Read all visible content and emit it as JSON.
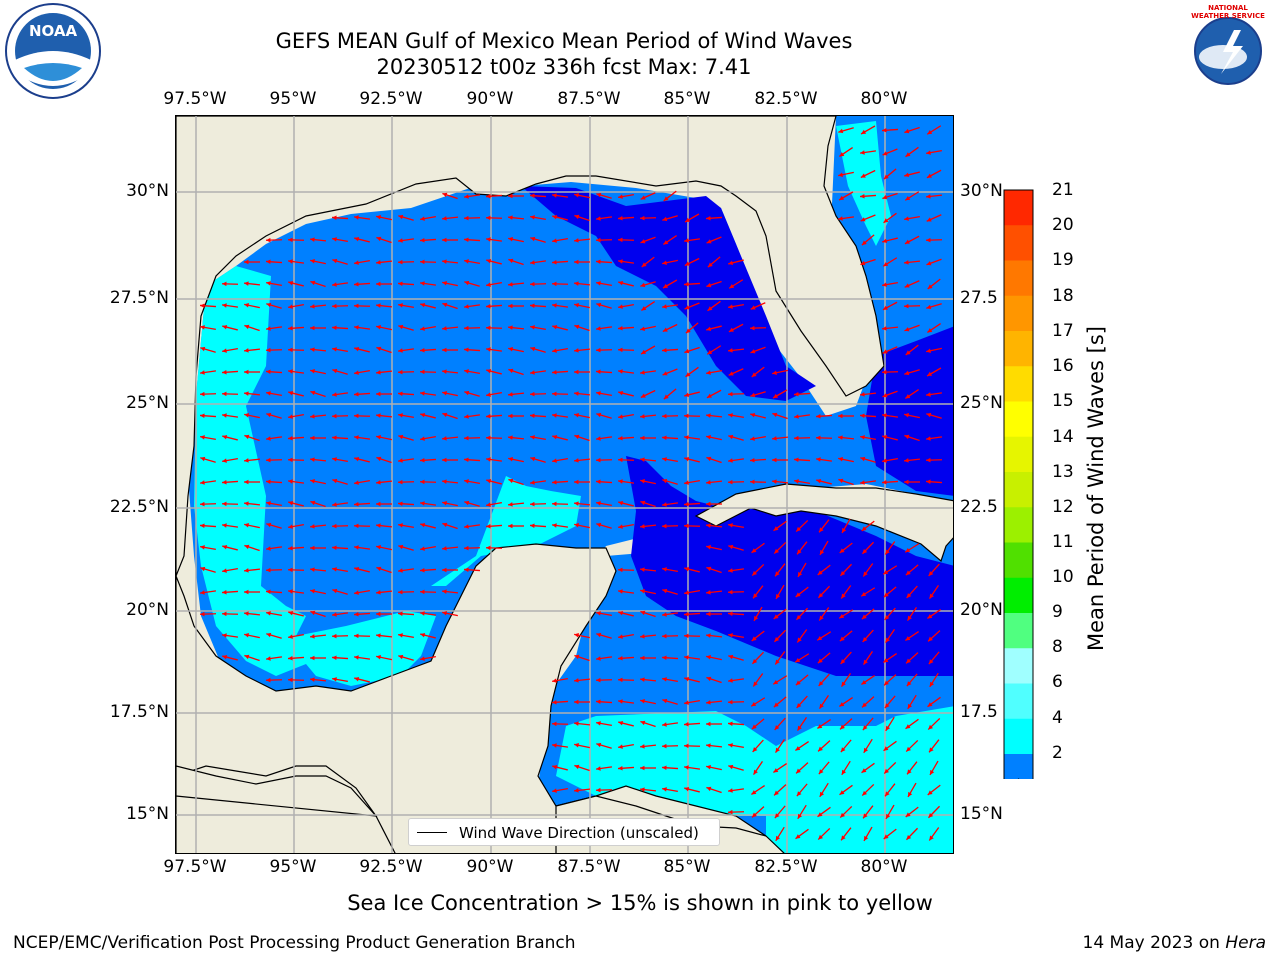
{
  "title": {
    "line1": "GEFS MEAN Gulf of Mexico Mean Period of Wind Waves",
    "line2": "20230512 t00z 336h fcst   Max: 7.41"
  },
  "logos": {
    "noaa_text": "NOAA",
    "nws_text": "NATIONAL WEATHER SERVICE"
  },
  "map": {
    "lon_labels": [
      "97.5°W",
      "95°W",
      "92.5°W",
      "90°W",
      "87.5°W",
      "85°W",
      "82.5°W",
      "80°W"
    ],
    "lat_labels_left": [
      "30°N",
      "27.5°N",
      "25°N",
      "22.5°N",
      "20°N",
      "17.5°N",
      "15°N"
    ],
    "lat_labels_right": [
      "30°N",
      "27.5",
      "25°N",
      "22.5",
      "20°N",
      "17.5",
      "15°N"
    ],
    "legend_label": "Wind Wave Direction (unscaled)",
    "colors": {
      "land": "#eeecdc",
      "level_2_4": "#0080ff",
      "level_below_2": "#0000ee",
      "level_4_6": "#00ffff",
      "level_6_8": "#40ffff",
      "arrow": "#ff0000",
      "grid": "#b0b0b0"
    }
  },
  "colorbar": {
    "title": "Mean Period of Wind Waves [s]",
    "levels": [
      "21",
      "20",
      "19",
      "18",
      "17",
      "16",
      "15",
      "14",
      "13",
      "12",
      "11",
      "10",
      "9",
      "8",
      "6",
      "4",
      "2"
    ],
    "colors": [
      "#ff0000",
      "#ff2800",
      "#ff5000",
      "#ff7800",
      "#ff9600",
      "#ffb400",
      "#ffdc00",
      "#ffff00",
      "#e6f500",
      "#c8f000",
      "#9cf000",
      "#50e000",
      "#00ee00",
      "#50ff80",
      "#a0ffff",
      "#50ffff",
      "#00ffff",
      "#0080ff"
    ],
    "extend_color": "#0000ee"
  },
  "footer": {
    "note": "Sea Ice Concentration > 15% is shown in pink to yellow",
    "left": "NCEP/EMC/Verification Post Processing Product Generation Branch",
    "right_prefix": "14 May 2023 on ",
    "right_host": "Hera"
  }
}
